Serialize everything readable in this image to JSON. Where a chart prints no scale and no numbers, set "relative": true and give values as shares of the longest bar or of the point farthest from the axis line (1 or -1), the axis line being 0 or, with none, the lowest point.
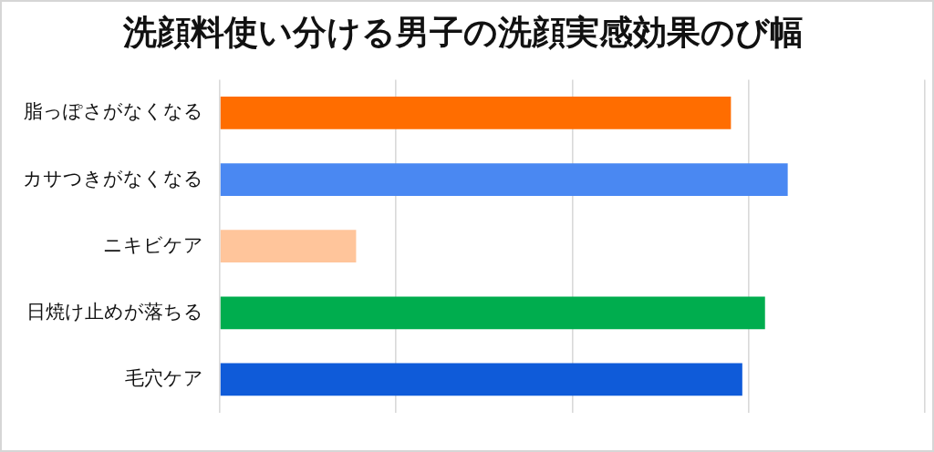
{
  "chart_data": {
    "type": "bar",
    "title": "洗顔料使い分ける男子の洗顔実感効果のび幅",
    "orientation": "horizontal",
    "relative": true,
    "grid": "x",
    "categories": [
      "脂っぽさがなくなる",
      "カサつきがなくなる",
      "ニキビケア",
      "日焼け止めが落ちる",
      "毛穴ケア"
    ],
    "values": [
      0.9,
      1,
      0.24,
      0.96,
      0.92
    ],
    "colors": [
      "#ff6d00",
      "#4a88f2",
      "#ffc59b",
      "#00ad4e",
      "#0f5bd9"
    ]
  }
}
